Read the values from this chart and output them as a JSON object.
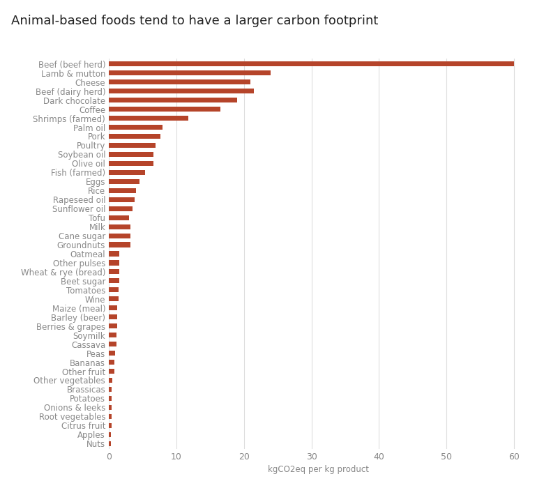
{
  "title": "Animal-based foods tend to have a larger carbon footprint",
  "xlabel": "kgCO2eq per kg product",
  "bar_color": "#b5442a",
  "categories": [
    "Beef (beef herd)",
    "Lamb & mutton",
    "Cheese",
    "Beef (dairy herd)",
    "Dark chocolate",
    "Coffee",
    "Shrimps (farmed)",
    "Palm oil",
    "Pork",
    "Poultry",
    "Soybean oil",
    "Olive oil",
    "Fish (farmed)",
    "Eggs",
    "Rice",
    "Rapeseed oil",
    "Sunflower oil",
    "Tofu",
    "Milk",
    "Cane sugar",
    "Groundnuts",
    "Oatmeal",
    "Other pulses",
    "Wheat & rye (bread)",
    "Beet sugar",
    "Tomatoes",
    "Wine",
    "Maize (meal)",
    "Barley (beer)",
    "Berries & grapes",
    "Soymilk",
    "Cassava",
    "Peas",
    "Bananas",
    "Other fruit",
    "Other vegetables",
    "Brassicas",
    "Potatoes",
    "Onions & leeks",
    "Root vegetables",
    "Citrus fruit",
    "Apples",
    "Nuts"
  ],
  "values": [
    60.0,
    24.0,
    21.0,
    21.5,
    19.0,
    16.5,
    11.8,
    8.0,
    7.6,
    6.9,
    6.6,
    6.6,
    5.4,
    4.5,
    4.0,
    3.8,
    3.5,
    3.0,
    3.2,
    3.2,
    3.2,
    1.6,
    1.6,
    1.6,
    1.6,
    1.4,
    1.4,
    1.2,
    1.2,
    1.2,
    1.1,
    1.1,
    0.98,
    0.86,
    0.85,
    0.53,
    0.46,
    0.46,
    0.39,
    0.43,
    0.39,
    0.35,
    0.26
  ],
  "xlim": [
    0,
    62
  ],
  "xticks": [
    0,
    10,
    20,
    30,
    40,
    50,
    60
  ],
  "background_color": "#ffffff",
  "grid_color": "#dddddd",
  "label_color": "#888888",
  "title_fontsize": 13,
  "label_fontsize": 8.5,
  "tick_fontsize": 9,
  "title_color": "#222222"
}
